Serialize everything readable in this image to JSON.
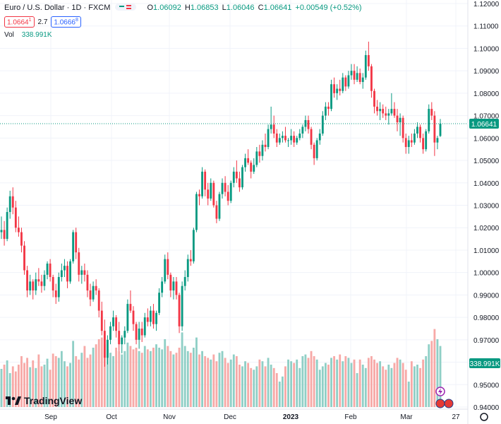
{
  "header": {
    "symbol": "Euro / U.S. Dollar · 1D · FXCM",
    "o_label": "O",
    "o_value": "1.06092",
    "h_label": "H",
    "h_value": "1.06853",
    "l_label": "L",
    "l_value": "1.06046",
    "c_label": "C",
    "c_value": "1.06641",
    "change": "+0.00549 (+0.52%)",
    "sell_price": "1.0664",
    "sell_sup": "1",
    "spread": "2.7",
    "buy_price": "1.0666",
    "buy_sup": "8",
    "vol_label": "Vol",
    "vol_value": "338.991K"
  },
  "brand": {
    "name": "TradingView"
  },
  "colors": {
    "up": "#089981",
    "down": "#f23645",
    "vol_up": "#8fcfc6",
    "vol_down": "#f7a9a7",
    "grid": "#f0f3fa"
  },
  "chart_data": {
    "type": "candlestick",
    "price_axis": {
      "min": 0.94,
      "max": 1.12,
      "ticks": [
        "1.12000",
        "1.11000",
        "1.10000",
        "1.09000",
        "1.08000",
        "1.07000",
        "1.06000",
        "1.05000",
        "1.04000",
        "1.03000",
        "1.02000",
        "1.01000",
        "1.00000",
        "0.99000",
        "0.98000",
        "0.97000",
        "0.96000",
        "0.95000",
        "0.94000"
      ]
    },
    "time_axis": [
      "Sep",
      "Oct",
      "Nov",
      "Dec",
      "2023",
      "Feb",
      "Mar",
      "27"
    ],
    "last_price": 1.06641,
    "last_price_label": "1.06641",
    "volume_label": "338.991K",
    "candles": [
      [
        1.018,
        1.025,
        1.015,
        1.019
      ],
      [
        1.019,
        1.023,
        1.012,
        1.015
      ],
      [
        1.015,
        1.029,
        1.014,
        1.027
      ],
      [
        1.027,
        1.0365,
        1.024,
        1.034
      ],
      [
        1.034,
        1.038,
        1.026,
        1.029
      ],
      [
        1.029,
        1.032,
        1.018,
        1.02
      ],
      [
        1.02,
        1.025,
        1.016,
        1.018
      ],
      [
        1.018,
        1.02,
        1.009,
        1.012
      ],
      [
        1.012,
        1.014,
        0.999,
        1.001
      ],
      [
        1.001,
        1.003,
        0.989,
        0.992
      ],
      [
        0.992,
        0.999,
        0.99,
        0.996
      ],
      [
        0.996,
        0.997,
        0.988,
        0.992
      ],
      [
        0.992,
        1.0,
        0.99,
        0.997
      ],
      [
        0.997,
        1.002,
        0.994,
        0.996
      ],
      [
        0.996,
        0.999,
        0.991,
        0.994
      ],
      [
        0.994,
        1.001,
        0.992,
        0.999
      ],
      [
        0.999,
        1.005,
        0.997,
        1.004
      ],
      [
        1.004,
        1.006,
        0.996,
        0.998
      ],
      [
        0.998,
        0.999,
        0.989,
        0.992
      ],
      [
        0.992,
        0.995,
        0.986,
        0.989
      ],
      [
        0.989,
        1.0,
        0.987,
        0.998
      ],
      [
        0.998,
        1.004,
        0.996,
        1.001
      ],
      [
        1.001,
        1.006,
        0.998,
        1.003
      ],
      [
        1.003,
        1.005,
        0.993,
        0.996
      ],
      [
        0.996,
        1.006,
        0.995,
        1.005
      ],
      [
        1.005,
        1.019,
        1.004,
        1.018
      ],
      [
        1.018,
        1.02,
        1.006,
        1.009
      ],
      [
        1.009,
        1.011,
        0.996,
        0.999
      ],
      [
        0.999,
        1.003,
        0.995,
        1.001
      ],
      [
        1.001,
        1.004,
        0.996,
        0.999
      ],
      [
        0.999,
        1.001,
        0.989,
        0.992
      ],
      [
        0.992,
        0.995,
        0.985,
        0.988
      ],
      [
        0.988,
        0.996,
        0.987,
        0.994
      ],
      [
        0.994,
        0.997,
        0.99,
        0.992
      ],
      [
        0.992,
        0.993,
        0.98,
        0.983
      ],
      [
        0.983,
        0.987,
        0.972,
        0.974
      ],
      [
        0.974,
        0.979,
        0.958,
        0.962
      ],
      [
        0.962,
        0.972,
        0.959,
        0.97
      ],
      [
        0.97,
        0.978,
        0.968,
        0.976
      ],
      [
        0.976,
        0.983,
        0.974,
        0.98
      ],
      [
        0.98,
        0.981,
        0.971,
        0.974
      ],
      [
        0.974,
        0.978,
        0.965,
        0.968
      ],
      [
        0.968,
        0.972,
        0.964,
        0.971
      ],
      [
        0.971,
        0.976,
        0.968,
        0.974
      ],
      [
        0.974,
        0.988,
        0.973,
        0.986
      ],
      [
        0.986,
        0.992,
        0.982,
        0.983
      ],
      [
        0.983,
        0.985,
        0.974,
        0.977
      ],
      [
        0.977,
        0.978,
        0.968,
        0.97
      ],
      [
        0.97,
        0.978,
        0.966,
        0.975
      ],
      [
        0.975,
        0.978,
        0.969,
        0.972
      ],
      [
        0.972,
        0.982,
        0.971,
        0.98
      ],
      [
        0.98,
        0.984,
        0.976,
        0.978
      ],
      [
        0.978,
        0.985,
        0.976,
        0.983
      ],
      [
        0.983,
        0.986,
        0.975,
        0.977
      ],
      [
        0.977,
        0.983,
        0.974,
        0.982
      ],
      [
        0.982,
        0.993,
        0.981,
        0.991
      ],
      [
        0.991,
        0.998,
        0.989,
        0.996
      ],
      [
        0.996,
        1.008,
        0.995,
        1.006
      ],
      [
        1.006,
        1.009,
        0.997,
        0.999
      ],
      [
        0.999,
        1.0,
        0.989,
        0.992
      ],
      [
        0.992,
        0.998,
        0.988,
        0.996
      ],
      [
        0.996,
        0.998,
        0.988,
        0.99
      ],
      [
        0.99,
        0.991,
        0.973,
        0.976
      ],
      [
        0.976,
        0.996,
        0.974,
        0.994
      ],
      [
        0.994,
        1.001,
        0.992,
        0.998
      ],
      [
        0.998,
        1.008,
        0.996,
        1.006
      ],
      [
        1.006,
        1.01,
        1.003,
        1.005
      ],
      [
        1.005,
        1.02,
        1.004,
        1.019
      ],
      [
        1.019,
        1.036,
        1.018,
        1.035
      ],
      [
        1.035,
        1.037,
        1.03,
        1.034
      ],
      [
        1.034,
        1.047,
        1.033,
        1.045
      ],
      [
        1.045,
        1.046,
        1.034,
        1.037
      ],
      [
        1.037,
        1.04,
        1.03,
        1.033
      ],
      [
        1.033,
        1.042,
        1.032,
        1.04
      ],
      [
        1.04,
        1.041,
        1.029,
        1.03
      ],
      [
        1.03,
        1.032,
        1.022,
        1.024
      ],
      [
        1.024,
        1.036,
        1.023,
        1.035
      ],
      [
        1.035,
        1.042,
        1.033,
        1.04
      ],
      [
        1.04,
        1.043,
        1.034,
        1.036
      ],
      [
        1.036,
        1.039,
        1.03,
        1.032
      ],
      [
        1.032,
        1.041,
        1.031,
        1.04
      ],
      [
        1.04,
        1.047,
        1.038,
        1.045
      ],
      [
        1.045,
        1.05,
        1.04,
        1.042
      ],
      [
        1.042,
        1.045,
        1.036,
        1.038
      ],
      [
        1.038,
        1.048,
        1.037,
        1.047
      ],
      [
        1.047,
        1.053,
        1.045,
        1.051
      ],
      [
        1.051,
        1.055,
        1.048,
        1.049
      ],
      [
        1.049,
        1.05,
        1.042,
        1.045
      ],
      [
        1.045,
        1.051,
        1.044,
        1.048
      ],
      [
        1.048,
        1.056,
        1.047,
        1.054
      ],
      [
        1.054,
        1.057,
        1.049,
        1.052
      ],
      [
        1.052,
        1.059,
        1.05,
        1.057
      ],
      [
        1.057,
        1.062,
        1.054,
        1.056
      ],
      [
        1.056,
        1.066,
        1.055,
        1.064
      ],
      [
        1.064,
        1.074,
        1.062,
        1.066
      ],
      [
        1.066,
        1.07,
        1.06,
        1.062
      ],
      [
        1.062,
        1.064,
        1.056,
        1.058
      ],
      [
        1.058,
        1.062,
        1.057,
        1.06
      ],
      [
        1.06,
        1.063,
        1.058,
        1.061
      ],
      [
        1.061,
        1.065,
        1.058,
        1.059
      ],
      [
        1.059,
        1.06,
        1.056,
        1.059
      ],
      [
        1.059,
        1.064,
        1.057,
        1.061
      ],
      [
        1.061,
        1.063,
        1.056,
        1.058
      ],
      [
        1.058,
        1.061,
        1.057,
        1.06
      ],
      [
        1.06,
        1.064,
        1.059,
        1.062
      ],
      [
        1.062,
        1.066,
        1.06,
        1.065
      ],
      [
        1.065,
        1.07,
        1.063,
        1.068
      ],
      [
        1.068,
        1.07,
        1.062,
        1.064
      ],
      [
        1.064,
        1.065,
        1.055,
        1.057
      ],
      [
        1.057,
        1.058,
        1.048,
        1.051
      ],
      [
        1.051,
        1.06,
        1.05,
        1.059
      ],
      [
        1.059,
        1.064,
        1.057,
        1.062
      ],
      [
        1.062,
        1.072,
        1.061,
        1.07
      ],
      [
        1.07,
        1.076,
        1.068,
        1.074
      ],
      [
        1.074,
        1.076,
        1.07,
        1.073
      ],
      [
        1.073,
        1.086,
        1.072,
        1.084
      ],
      [
        1.084,
        1.087,
        1.078,
        1.08
      ],
      [
        1.08,
        1.084,
        1.077,
        1.082
      ],
      [
        1.082,
        1.086,
        1.079,
        1.081
      ],
      [
        1.081,
        1.089,
        1.08,
        1.087
      ],
      [
        1.087,
        1.088,
        1.081,
        1.083
      ],
      [
        1.083,
        1.09,
        1.082,
        1.088
      ],
      [
        1.088,
        1.093,
        1.086,
        1.09
      ],
      [
        1.09,
        1.093,
        1.084,
        1.086
      ],
      [
        1.086,
        1.092,
        1.085,
        1.089
      ],
      [
        1.089,
        1.091,
        1.084,
        1.085
      ],
      [
        1.085,
        1.089,
        1.082,
        1.087
      ],
      [
        1.087,
        1.099,
        1.086,
        1.097
      ],
      [
        1.097,
        1.103,
        1.09,
        1.092
      ],
      [
        1.092,
        1.093,
        1.078,
        1.081
      ],
      [
        1.081,
        1.082,
        1.071,
        1.074
      ],
      [
        1.074,
        1.077,
        1.07,
        1.072
      ],
      [
        1.072,
        1.076,
        1.068,
        1.073
      ],
      [
        1.073,
        1.075,
        1.069,
        1.071
      ],
      [
        1.071,
        1.074,
        1.068,
        1.07
      ],
      [
        1.07,
        1.073,
        1.066,
        1.071
      ],
      [
        1.071,
        1.08,
        1.07,
        1.073
      ],
      [
        1.073,
        1.076,
        1.069,
        1.07
      ],
      [
        1.07,
        1.073,
        1.063,
        1.067
      ],
      [
        1.067,
        1.071,
        1.061,
        1.069
      ],
      [
        1.069,
        1.07,
        1.058,
        1.06
      ],
      [
        1.06,
        1.062,
        1.053,
        1.056
      ],
      [
        1.056,
        1.061,
        1.053,
        1.059
      ],
      [
        1.059,
        1.062,
        1.056,
        1.058
      ],
      [
        1.058,
        1.064,
        1.057,
        1.062
      ],
      [
        1.062,
        1.067,
        1.06,
        1.065
      ],
      [
        1.065,
        1.066,
        1.058,
        1.06
      ],
      [
        1.06,
        1.062,
        1.053,
        1.055
      ],
      [
        1.055,
        1.064,
        1.054,
        1.063
      ],
      [
        1.063,
        1.075,
        1.062,
        1.073
      ],
      [
        1.073,
        1.076,
        1.068,
        1.07
      ],
      [
        1.07,
        1.072,
        1.052,
        1.058
      ],
      [
        1.058,
        1.061,
        1.055,
        1.06
      ],
      [
        1.0609,
        1.0685,
        1.0605,
        1.0664
      ]
    ],
    "volumes": [
      0.45,
      0.5,
      0.55,
      0.4,
      0.48,
      0.42,
      0.5,
      0.6,
      0.52,
      0.58,
      0.47,
      0.55,
      0.46,
      0.62,
      0.48,
      0.5,
      0.57,
      0.44,
      0.63,
      0.6,
      0.58,
      0.66,
      0.54,
      0.48,
      0.52,
      0.78,
      0.6,
      0.56,
      0.64,
      0.72,
      0.58,
      0.62,
      0.7,
      0.74,
      0.8,
      0.82,
      0.74,
      0.68,
      0.64,
      0.6,
      0.7,
      0.66,
      0.62,
      0.66,
      0.76,
      0.72,
      0.68,
      0.7,
      0.66,
      0.64,
      0.72,
      0.68,
      0.66,
      0.7,
      0.74,
      0.7,
      0.68,
      0.8,
      0.72,
      0.66,
      0.62,
      0.64,
      0.7,
      0.88,
      0.72,
      0.66,
      0.64,
      0.7,
      0.82,
      0.62,
      0.66,
      0.6,
      0.58,
      0.56,
      0.62,
      0.54,
      0.64,
      0.66,
      0.58,
      0.52,
      0.56,
      0.62,
      0.6,
      0.5,
      0.48,
      0.54,
      0.52,
      0.46,
      0.44,
      0.48,
      0.56,
      0.54,
      0.48,
      0.58,
      0.5,
      0.46,
      0.4,
      0.3,
      0.36,
      0.48,
      0.56,
      0.54,
      0.52,
      0.56,
      0.46,
      0.6,
      0.62,
      0.58,
      0.66,
      0.6,
      0.56,
      0.44,
      0.48,
      0.52,
      0.5,
      0.58,
      0.6,
      0.56,
      0.62,
      0.54,
      0.6,
      0.58,
      0.52,
      0.56,
      0.4,
      0.56,
      0.5,
      0.46,
      0.58,
      0.6,
      0.56,
      0.52,
      0.54,
      0.48,
      0.44,
      0.5,
      0.46,
      0.52,
      0.58,
      0.56,
      0.52,
      0.44,
      0.3,
      0.54,
      0.48,
      0.5,
      0.46,
      0.56,
      0.6,
      0.74,
      0.78,
      0.92,
      0.8,
      0.72
    ]
  }
}
